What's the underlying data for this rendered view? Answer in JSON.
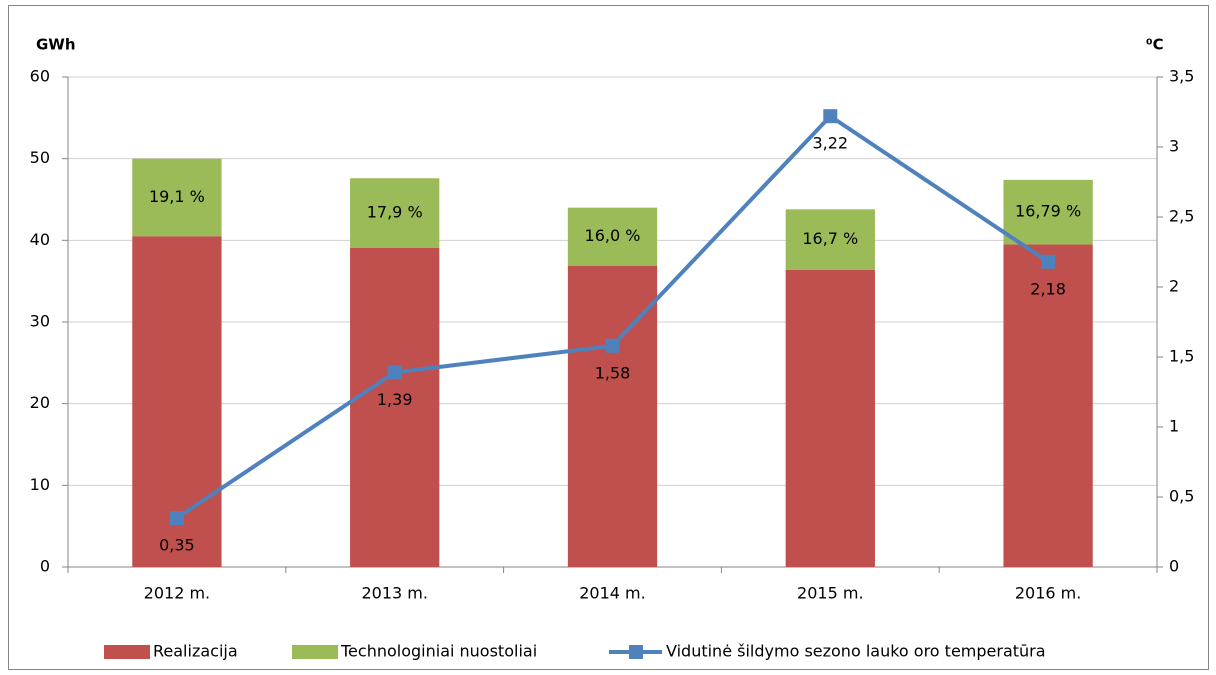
{
  "chart_data": {
    "type": "bar",
    "y_axis_title": "GWh",
    "y2_axis_title": "⁰C",
    "categories": [
      "2012 m.",
      "2013 m.",
      "2014 m.",
      "2015 m.",
      "2016 m."
    ],
    "series": [
      {
        "name": "Realizacija",
        "color": "#c0504d",
        "type": "bar",
        "values": [
          40.5,
          39.1,
          36.9,
          36.4,
          39.5
        ]
      },
      {
        "name": "Technologiniai nuostoliai",
        "color": "#9bbb59",
        "type": "bar",
        "values": [
          9.5,
          8.5,
          7.1,
          7.4,
          7.9
        ],
        "labels": [
          "19,1 %",
          "17,9 %",
          "16,0 %",
          "16,7 %",
          "16,79 %"
        ]
      },
      {
        "name": "Vidutinė šildymo sezono lauko oro temperatūra",
        "color": "#4f81bd",
        "type": "line",
        "axis": "y2",
        "values": [
          0.35,
          1.39,
          1.58,
          3.22,
          2.18
        ],
        "value_labels": [
          "0,35",
          "1,39",
          "1,58",
          "3,22",
          "2,18"
        ]
      }
    ],
    "stacked": true,
    "ylim": [
      0,
      60
    ],
    "yticks": [
      0,
      10,
      20,
      30,
      40,
      50,
      60
    ],
    "y2lim": [
      0,
      3.5
    ],
    "y2ticks": [
      0,
      {
        "value": 0.5,
        "label": "0,5"
      },
      1,
      {
        "value": 1.5,
        "label": "1,5"
      },
      2,
      {
        "value": 2.5,
        "label": "2,5"
      },
      3,
      {
        "value": 3.5,
        "label": "3,5"
      }
    ],
    "grid": true,
    "legend": "bottom"
  }
}
